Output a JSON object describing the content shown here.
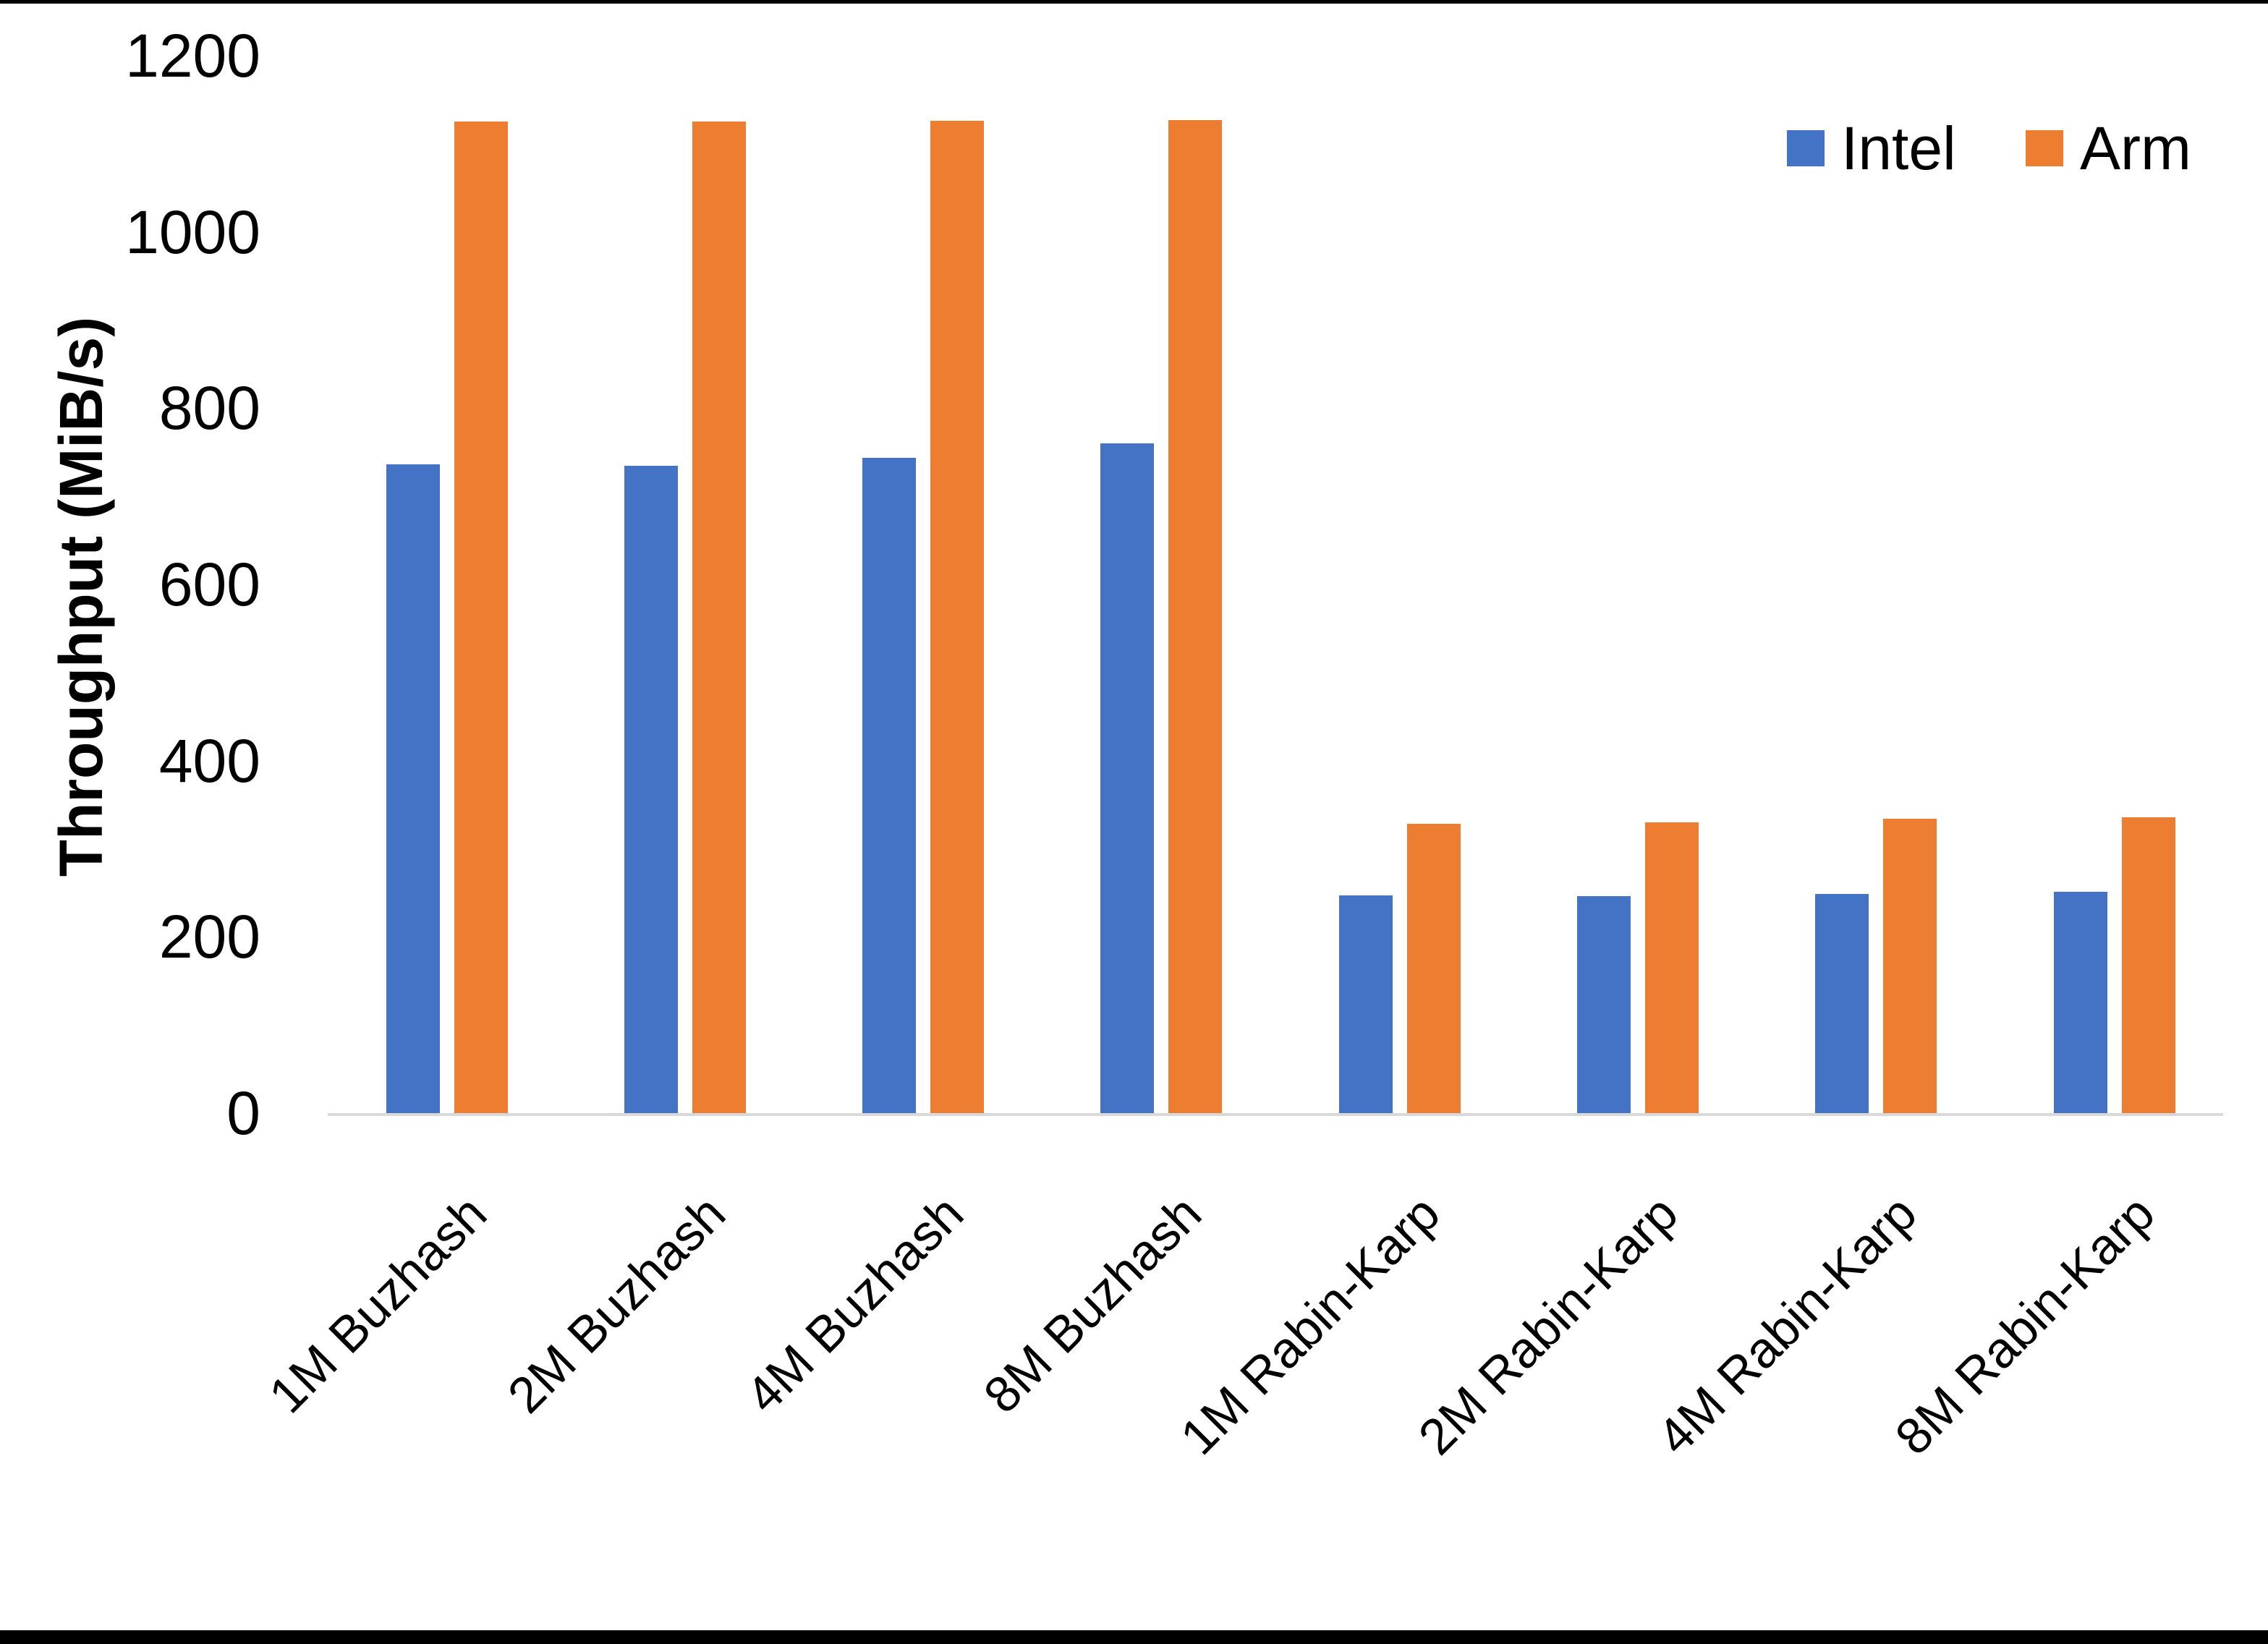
{
  "chart_data": {
    "type": "bar",
    "title": "",
    "xlabel": "",
    "ylabel": "Throughput (MiB/s)",
    "categories": [
      "1M Buzhash",
      "2M Buzhash",
      "4M Buzhash",
      "8M Buzhash",
      "1M Rabin-Karp",
      "2M Rabin-Karp",
      "4M Rabin-Karp",
      "8M Rabin-Karp"
    ],
    "series": [
      {
        "name": "Intel",
        "color": "#4472C4",
        "values": [
          736,
          735,
          744,
          760,
          247,
          246,
          249,
          251
        ]
      },
      {
        "name": "Arm",
        "color": "#ED7D31",
        "values": [
          1125,
          1125,
          1126,
          1127,
          328,
          330,
          334,
          336
        ]
      }
    ],
    "ylim": [
      0,
      1200
    ],
    "yticks": [
      1200,
      1000,
      800,
      600,
      400,
      200,
      0
    ],
    "grid": false,
    "legend_position": "top-right",
    "axis_line_color": "#D9D9D9",
    "text_color": "#000000",
    "background_color": "#FFFFFF",
    "border_color": "#000000"
  }
}
